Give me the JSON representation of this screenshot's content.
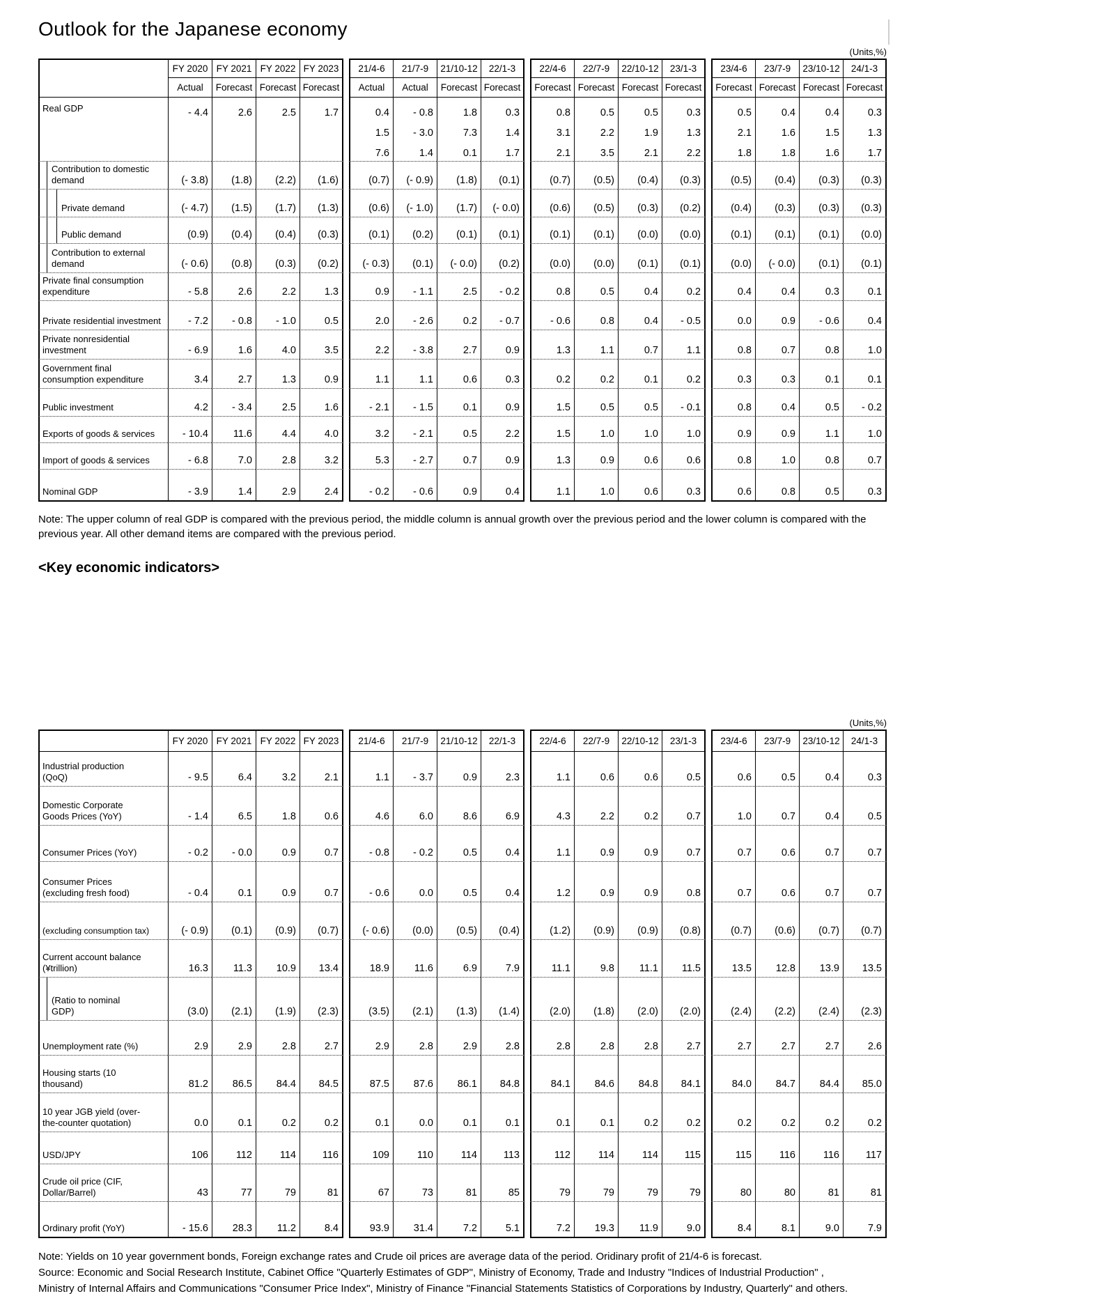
{
  "title": "Outlook for the Japanese economy",
  "units_label": "(Units,%)",
  "gdp_table": {
    "column_groups": [
      {
        "periods": [
          "FY 2020",
          "FY 2021",
          "FY 2022",
          "FY 2023"
        ],
        "types": [
          "Actual",
          "Forecast",
          "Forecast",
          "Forecast"
        ]
      },
      {
        "periods": [
          "21/4-6",
          "21/7-9",
          "21/10-12",
          "22/1-3"
        ],
        "types": [
          "Actual",
          "Actual",
          "Forecast",
          "Forecast"
        ]
      },
      {
        "periods": [
          "22/4-6",
          "22/7-9",
          "22/10-12",
          "23/1-3"
        ],
        "types": [
          "Forecast",
          "Forecast",
          "Forecast",
          "Forecast"
        ]
      },
      {
        "periods": [
          "23/4-6",
          "23/7-9",
          "23/10-12",
          "24/1-3"
        ],
        "types": [
          "Forecast",
          "Forecast",
          "Forecast",
          "Forecast"
        ]
      }
    ],
    "rows": [
      {
        "label": "Real GDP",
        "indent": 0,
        "lines": [
          [
            "- 4.4",
            "2.6",
            "2.5",
            "1.7",
            "0.4",
            "- 0.8",
            "1.8",
            "0.3",
            "0.8",
            "0.5",
            "0.5",
            "0.3",
            "0.5",
            "0.4",
            "0.4",
            "0.3"
          ],
          [
            "",
            "",
            "",
            "",
            "1.5",
            "- 3.0",
            "7.3",
            "1.4",
            "3.1",
            "2.2",
            "1.9",
            "1.3",
            "2.1",
            "1.6",
            "1.5",
            "1.3"
          ],
          [
            "",
            "",
            "",
            "",
            "7.6",
            "1.4",
            "0.1",
            "1.7",
            "2.1",
            "3.5",
            "2.1",
            "2.2",
            "1.8",
            "1.8",
            "1.6",
            "1.7"
          ]
        ]
      },
      {
        "label": "Contribution to domestic\ndemand",
        "indent": 1,
        "values": [
          "(- 3.8)",
          "(1.8)",
          "(2.2)",
          "(1.6)",
          "(0.7)",
          "(- 0.9)",
          "(1.8)",
          "(0.1)",
          "(0.7)",
          "(0.5)",
          "(0.4)",
          "(0.3)",
          "(0.5)",
          "(0.4)",
          "(0.3)",
          "(0.3)"
        ]
      },
      {
        "label": "Private demand",
        "indent": 2,
        "values": [
          "(- 4.7)",
          "(1.5)",
          "(1.7)",
          "(1.3)",
          "(0.6)",
          "(- 1.0)",
          "(1.7)",
          "(- 0.0)",
          "(0.6)",
          "(0.5)",
          "(0.3)",
          "(0.2)",
          "(0.4)",
          "(0.3)",
          "(0.3)",
          "(0.3)"
        ]
      },
      {
        "label": "Public demand",
        "indent": 2,
        "values": [
          "(0.9)",
          "(0.4)",
          "(0.4)",
          "(0.3)",
          "(0.1)",
          "(0.2)",
          "(0.1)",
          "(0.1)",
          "(0.1)",
          "(0.1)",
          "(0.0)",
          "(0.0)",
          "(0.1)",
          "(0.1)",
          "(0.1)",
          "(0.0)"
        ]
      },
      {
        "label": "Contribution to external\ndemand",
        "indent": 1,
        "values": [
          "(- 0.6)",
          "(0.8)",
          "(0.3)",
          "(0.2)",
          "(- 0.3)",
          "(0.1)",
          "(- 0.0)",
          "(0.2)",
          "(0.0)",
          "(0.0)",
          "(0.1)",
          "(0.1)",
          "(0.0)",
          "(- 0.0)",
          "(0.1)",
          "(0.1)"
        ]
      },
      {
        "label": "Private final consumption\nexpenditure",
        "indent": 0,
        "values": [
          "- 5.8",
          "2.6",
          "2.2",
          "1.3",
          "0.9",
          "- 1.1",
          "2.5",
          "- 0.2",
          "0.8",
          "0.5",
          "0.4",
          "0.2",
          "0.4",
          "0.4",
          "0.3",
          "0.1"
        ]
      },
      {
        "label": "Private residential investment",
        "indent": 0,
        "values": [
          "- 7.2",
          "- 0.8",
          "- 1.0",
          "0.5",
          "2.0",
          "- 2.6",
          "0.2",
          "- 0.7",
          "- 0.6",
          "0.8",
          "0.4",
          "- 0.5",
          "0.0",
          "0.9",
          "- 0.6",
          "0.4"
        ]
      },
      {
        "label": "Private nonresidential\ninvestment",
        "indent": 0,
        "values": [
          "- 6.9",
          "1.6",
          "4.0",
          "3.5",
          "2.2",
          "- 3.8",
          "2.7",
          "0.9",
          "1.3",
          "1.1",
          "0.7",
          "1.1",
          "0.8",
          "0.7",
          "0.8",
          "1.0"
        ]
      },
      {
        "label": "Government final\nconsumption expenditure",
        "indent": 0,
        "values": [
          "3.4",
          "2.7",
          "1.3",
          "0.9",
          "1.1",
          "1.1",
          "0.6",
          "0.3",
          "0.2",
          "0.2",
          "0.1",
          "0.2",
          "0.3",
          "0.3",
          "0.1",
          "0.1"
        ]
      },
      {
        "label": "Public investment",
        "indent": 0,
        "values": [
          "4.2",
          "- 3.4",
          "2.5",
          "1.6",
          "- 2.1",
          "- 1.5",
          "0.1",
          "0.9",
          "1.5",
          "0.5",
          "0.5",
          "- 0.1",
          "0.8",
          "0.4",
          "0.5",
          "- 0.2"
        ]
      },
      {
        "label": "Exports of goods & services",
        "indent": 0,
        "values": [
          "- 10.4",
          "11.6",
          "4.4",
          "4.0",
          "3.2",
          "- 2.1",
          "0.5",
          "2.2",
          "1.5",
          "1.0",
          "1.0",
          "1.0",
          "0.9",
          "0.9",
          "1.1",
          "1.0"
        ]
      },
      {
        "label": "Import of goods & services",
        "indent": 0,
        "values": [
          "- 6.8",
          "7.0",
          "2.8",
          "3.2",
          "5.3",
          "- 2.7",
          "0.7",
          "0.9",
          "1.3",
          "0.9",
          "0.6",
          "0.6",
          "0.8",
          "1.0",
          "0.8",
          "0.7"
        ]
      },
      {
        "label": "Nominal GDP",
        "indent": 0,
        "values": [
          "- 3.9",
          "1.4",
          "2.9",
          "2.4",
          "- 0.2",
          "- 0.6",
          "0.9",
          "0.4",
          "1.1",
          "1.0",
          "0.6",
          "0.3",
          "0.6",
          "0.8",
          "0.5",
          "0.3"
        ]
      }
    ]
  },
  "gdp_note": "Note: The upper column of real GDP is compared with the previous period, the middle column is annual growth over the previous period and the lower column is compared with the previous year. All other demand items are compared with the previous period.",
  "indicators_title": "<Key economic indicators>",
  "indicators_table": {
    "column_groups": [
      {
        "periods": [
          "FY 2020",
          "FY 2021",
          "FY 2022",
          "FY 2023"
        ]
      },
      {
        "periods": [
          "21/4-6",
          "21/7-9",
          "21/10-12",
          "22/1-3"
        ]
      },
      {
        "periods": [
          "22/4-6",
          "22/7-9",
          "22/10-12",
          "23/1-3"
        ]
      },
      {
        "periods": [
          "23/4-6",
          "23/7-9",
          "23/10-12",
          "24/1-3"
        ]
      }
    ],
    "rows": [
      {
        "label": "Industrial production\n(QoQ)",
        "indent": 0,
        "values": [
          "- 9.5",
          "6.4",
          "3.2",
          "2.1",
          "1.1",
          "- 3.7",
          "0.9",
          "2.3",
          "1.1",
          "0.6",
          "0.6",
          "0.5",
          "0.6",
          "0.5",
          "0.4",
          "0.3"
        ]
      },
      {
        "label": "Domestic Corporate\nGoods Prices (YoY)",
        "indent": 0,
        "values": [
          "- 1.4",
          "6.5",
          "1.8",
          "0.6",
          "4.6",
          "6.0",
          "8.6",
          "6.9",
          "4.3",
          "2.2",
          "0.2",
          "0.7",
          "1.0",
          "0.7",
          "0.4",
          "0.5"
        ]
      },
      {
        "label": "Consumer Prices (YoY)",
        "indent": 0,
        "values": [
          "- 0.2",
          "- 0.0",
          "0.9",
          "0.7",
          "- 0.8",
          "- 0.2",
          "0.5",
          "0.4",
          "1.1",
          "0.9",
          "0.9",
          "0.7",
          "0.7",
          "0.6",
          "0.7",
          "0.7"
        ]
      },
      {
        "label": "Consumer Prices\n(excluding fresh food)",
        "indent": 0,
        "values": [
          "- 0.4",
          "0.1",
          "0.9",
          "0.7",
          "- 0.6",
          "0.0",
          "0.5",
          "0.4",
          "1.2",
          "0.9",
          "0.9",
          "0.8",
          "0.7",
          "0.6",
          "0.7",
          "0.7"
        ]
      },
      {
        "label": "(excluding consumption tax)",
        "indent": 0,
        "small": true,
        "values": [
          "(- 0.9)",
          "(0.1)",
          "(0.9)",
          "(0.7)",
          "(- 0.6)",
          "(0.0)",
          "(0.5)",
          "(0.4)",
          "(1.2)",
          "(0.9)",
          "(0.9)",
          "(0.8)",
          "(0.7)",
          "(0.6)",
          "(0.7)",
          "(0.7)"
        ]
      },
      {
        "label": "Current account balance\n(¥trillion)",
        "indent": 0,
        "values": [
          "16.3",
          "11.3",
          "10.9",
          "13.4",
          "18.9",
          "11.6",
          "6.9",
          "7.9",
          "11.1",
          "9.8",
          "11.1",
          "11.5",
          "13.5",
          "12.8",
          "13.9",
          "13.5"
        ]
      },
      {
        "label": "(Ratio to nominal\nGDP)",
        "indent": 1,
        "values": [
          "(3.0)",
          "(2.1)",
          "(1.9)",
          "(2.3)",
          "(3.5)",
          "(2.1)",
          "(1.3)",
          "(1.4)",
          "(2.0)",
          "(1.8)",
          "(2.0)",
          "(2.0)",
          "(2.4)",
          "(2.2)",
          "(2.4)",
          "(2.3)"
        ]
      },
      {
        "label": "Unemployment rate (%)",
        "indent": 0,
        "values": [
          "2.9",
          "2.9",
          "2.8",
          "2.7",
          "2.9",
          "2.8",
          "2.9",
          "2.8",
          "2.8",
          "2.8",
          "2.8",
          "2.7",
          "2.7",
          "2.7",
          "2.7",
          "2.6"
        ]
      },
      {
        "label": "Housing starts (10\nthousand)",
        "indent": 0,
        "values": [
          "81.2",
          "86.5",
          "84.4",
          "84.5",
          "87.5",
          "87.6",
          "86.1",
          "84.8",
          "84.1",
          "84.6",
          "84.8",
          "84.1",
          "84.0",
          "84.7",
          "84.4",
          "85.0"
        ]
      },
      {
        "label": "10 year JGB yield (over-\nthe-counter quotation)",
        "indent": 0,
        "values": [
          "0.0",
          "0.1",
          "0.2",
          "0.2",
          "0.1",
          "0.0",
          "0.1",
          "0.1",
          "0.1",
          "0.1",
          "0.2",
          "0.2",
          "0.2",
          "0.2",
          "0.2",
          "0.2"
        ]
      },
      {
        "label": "USD/JPY",
        "indent": 0,
        "values": [
          "106",
          "112",
          "114",
          "116",
          "109",
          "110",
          "114",
          "113",
          "112",
          "114",
          "114",
          "115",
          "115",
          "116",
          "116",
          "117"
        ]
      },
      {
        "label": "Crude oil price (CIF,\nDollar/Barrel)",
        "indent": 0,
        "values": [
          "43",
          "77",
          "79",
          "81",
          "67",
          "73",
          "81",
          "85",
          "79",
          "79",
          "79",
          "79",
          "80",
          "80",
          "81",
          "81"
        ]
      },
      {
        "label": "Ordinary profit (YoY)",
        "indent": 0,
        "values": [
          "- 15.6",
          "28.3",
          "11.2",
          "8.4",
          "93.9",
          "31.4",
          "7.2",
          "5.1",
          "7.2",
          "19.3",
          "11.9",
          "9.0",
          "8.4",
          "8.1",
          "9.0",
          "7.9"
        ]
      }
    ]
  },
  "indicators_note": "Note: Yields on 10 year government bonds, Foreign exchange rates and Crude oil prices are average data of the period. Oridinary profit of 21/4-6 is forecast.",
  "source_lines": [
    "Source: Economic and Social Research Institute, Cabinet Office \"Quarterly Estimates of GDP\", Ministry of Economy, Trade and Industry \"Indices of Industrial Production\" ,",
    "Ministry of Internal Affairs and Communications \"Consumer Price Index\", Ministry of Finance \"Financial Statements Statistics of Corporations by Industry, Quarterly\" and others."
  ]
}
